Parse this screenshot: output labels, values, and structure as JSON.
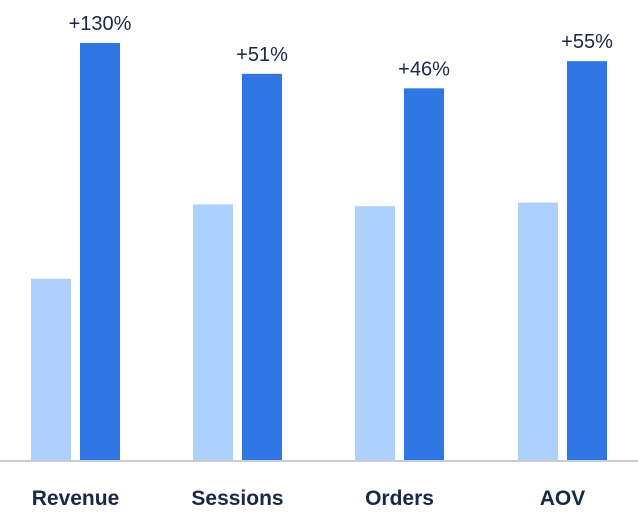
{
  "chart_data": {
    "type": "bar",
    "categories": [
      "Revenue",
      "Sessions",
      "Orders",
      "AOV"
    ],
    "series": [
      {
        "values": [
          1.0,
          1.41,
          1.4,
          1.42
        ],
        "color": "#aed0fe"
      },
      {
        "values": [
          2.3,
          2.13,
          2.05,
          2.2
        ],
        "color": "#3077e4"
      }
    ],
    "data_labels": [
      "+130%",
      "+51%",
      "+46%",
      "+55%"
    ],
    "ylim": [
      0,
      2.3
    ],
    "grid": false,
    "axis_color": "#c8ccd4",
    "title": "",
    "xlabel": "",
    "ylabel": ""
  }
}
